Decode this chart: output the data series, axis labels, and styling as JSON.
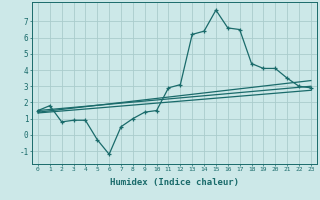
{
  "xlabel": "Humidex (Indice chaleur)",
  "xlim": [
    -0.5,
    23.5
  ],
  "ylim": [
    -1.8,
    8.2
  ],
  "xticks": [
    0,
    1,
    2,
    3,
    4,
    5,
    6,
    7,
    8,
    9,
    10,
    11,
    12,
    13,
    14,
    15,
    16,
    17,
    18,
    19,
    20,
    21,
    22,
    23
  ],
  "yticks": [
    -1,
    0,
    1,
    2,
    3,
    4,
    5,
    6,
    7
  ],
  "bg_color": "#cce8e8",
  "grid_color": "#aacccc",
  "line_color": "#1a6b6b",
  "main_x": [
    0,
    1,
    2,
    3,
    4,
    5,
    6,
    7,
    8,
    9,
    10,
    11,
    12,
    13,
    14,
    15,
    16,
    17,
    18,
    19,
    20,
    21,
    22,
    23
  ],
  "main_y": [
    1.5,
    1.8,
    0.8,
    0.9,
    0.9,
    -0.3,
    -1.2,
    0.5,
    1.0,
    1.4,
    1.5,
    2.9,
    3.1,
    6.2,
    6.4,
    7.7,
    6.6,
    6.5,
    4.4,
    4.1,
    4.1,
    3.5,
    3.0,
    2.9
  ],
  "line1_x": [
    0,
    23
  ],
  "line1_y": [
    1.5,
    3.0
  ],
  "line2_x": [
    0,
    23
  ],
  "line2_y": [
    1.4,
    3.35
  ],
  "line3_x": [
    0,
    23
  ],
  "line3_y": [
    1.35,
    2.75
  ]
}
